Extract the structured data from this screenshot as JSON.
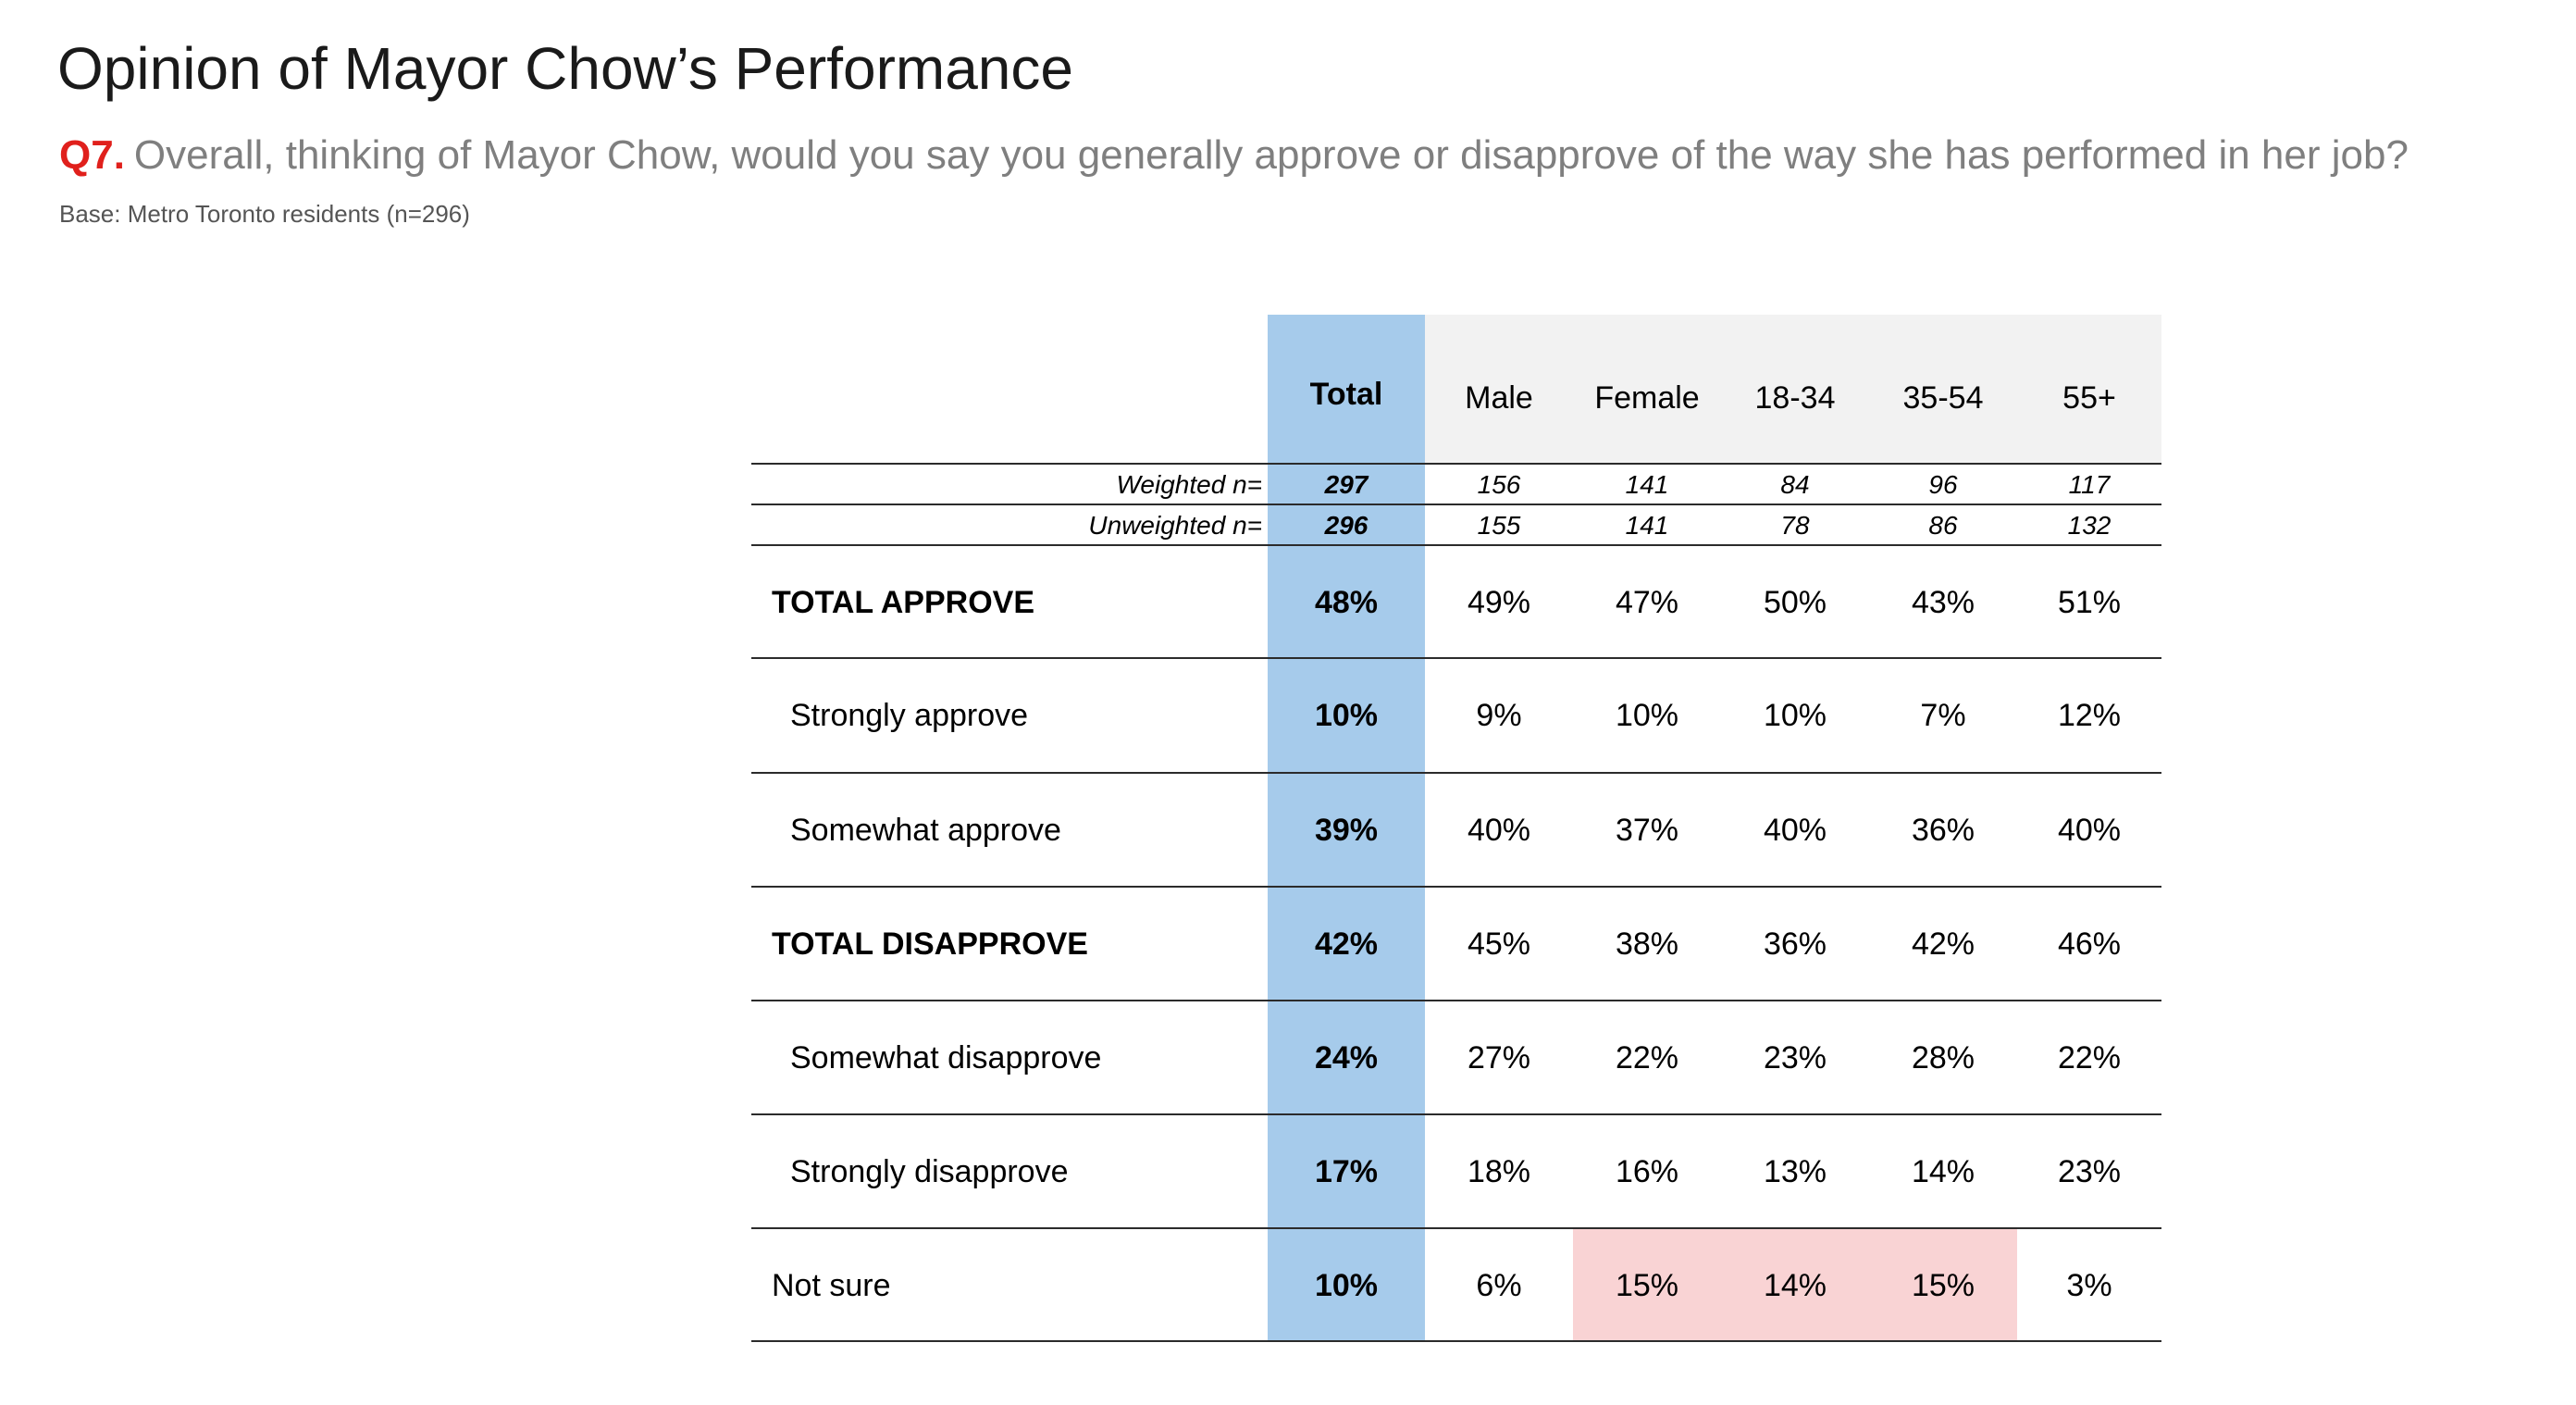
{
  "title": "Opinion of Mayor Chow’s Performance",
  "question": {
    "number": "Q7.",
    "text": "Overall, thinking of Mayor Chow, would you say you generally approve or disapprove of the way she has performed in her job?"
  },
  "base": "Base: Metro Toronto residents (n=296)",
  "colors": {
    "title": "#1a1a1a",
    "question_number": "#e0201c",
    "question_text": "#7f7f7f",
    "total_column": "#a6cbeb",
    "header_background": "#f2f2f2",
    "highlight": "#f9d3d4"
  },
  "table": {
    "columns": [
      "Total",
      "Male",
      "Female",
      "18-34",
      "35-54",
      "55+"
    ],
    "weighted": {
      "label": "Weighted n=",
      "values": [
        "297",
        "156",
        "141",
        "84",
        "96",
        "117"
      ]
    },
    "unweighted": {
      "label": "Unweighted n=",
      "values": [
        "296",
        "155",
        "141",
        "78",
        "86",
        "132"
      ]
    },
    "rows": [
      {
        "label": "TOTAL APPROVE",
        "style": "main",
        "values": [
          "48%",
          "49%",
          "47%",
          "50%",
          "43%",
          "51%"
        ]
      },
      {
        "label": "Strongly approve",
        "style": "sub",
        "values": [
          "10%",
          "9%",
          "10%",
          "10%",
          "7%",
          "12%"
        ]
      },
      {
        "label": "Somewhat approve",
        "style": "sub",
        "values": [
          "39%",
          "40%",
          "37%",
          "40%",
          "36%",
          "40%"
        ]
      },
      {
        "label": "TOTAL DISAPPROVE",
        "style": "main",
        "values": [
          "42%",
          "45%",
          "38%",
          "36%",
          "42%",
          "46%"
        ]
      },
      {
        "label": "Somewhat disapprove",
        "style": "sub",
        "values": [
          "24%",
          "27%",
          "22%",
          "23%",
          "28%",
          "22%"
        ]
      },
      {
        "label": "Strongly disapprove",
        "style": "sub",
        "values": [
          "17%",
          "18%",
          "16%",
          "13%",
          "14%",
          "23%"
        ]
      },
      {
        "label": "Not sure",
        "style": "plain",
        "values": [
          "10%",
          "6%",
          "15%",
          "14%",
          "15%",
          "3%"
        ],
        "highlighted": [
          "Female",
          "18-34",
          "35-54"
        ]
      }
    ]
  }
}
